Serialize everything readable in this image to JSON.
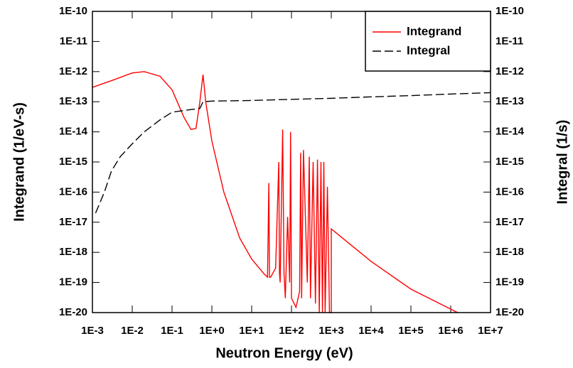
{
  "chart_data": {
    "type": "line",
    "xlabel": "Neutron Energy (eV)",
    "ylabel": "Integrand (1/eV-s)",
    "y2label": "Integral (1/s)",
    "log_x": true,
    "log_y": true,
    "legend": "upper right",
    "xlim": [
      0.001,
      10000000
    ],
    "xticks": [
      {
        "value": 0.001,
        "label": "1E-3"
      },
      {
        "value": 0.01,
        "label": "1E-2"
      },
      {
        "value": 0.1,
        "label": "1E-1"
      },
      {
        "value": 1,
        "label": "1E+0"
      },
      {
        "value": 10,
        "label": "1E+1"
      },
      {
        "value": 100,
        "label": "1E+2"
      },
      {
        "value": 1000,
        "label": "1E+3"
      },
      {
        "value": 10000,
        "label": "1E+4"
      },
      {
        "value": 100000,
        "label": "1E+5"
      },
      {
        "value": 1000000,
        "label": "1E+6"
      },
      {
        "value": 10000000,
        "label": "1E+7"
      }
    ],
    "ylim": [
      1e-20,
      1e-10
    ],
    "yticks": [
      {
        "value": 1e-20,
        "label": "1E-20"
      },
      {
        "value": 1e-19,
        "label": "1E-19"
      },
      {
        "value": 1e-18,
        "label": "1E-18"
      },
      {
        "value": 1e-17,
        "label": "1E-17"
      },
      {
        "value": 1e-16,
        "label": "1E-16"
      },
      {
        "value": 1e-15,
        "label": "1E-15"
      },
      {
        "value": 1e-14,
        "label": "1E-14"
      },
      {
        "value": 1e-13,
        "label": "1E-13"
      },
      {
        "value": 1e-12,
        "label": "1E-12"
      },
      {
        "value": 1e-11,
        "label": "1E-11"
      },
      {
        "value": 1e-10,
        "label": "1E-10"
      }
    ],
    "y2lim": [
      1e-20,
      1e-10
    ],
    "y2ticks": [
      {
        "value": 1e-20,
        "label": "1E-20"
      },
      {
        "value": 1e-19,
        "label": "1E-19"
      },
      {
        "value": 1e-18,
        "label": "1E-18"
      },
      {
        "value": 1e-17,
        "label": "1E-17"
      },
      {
        "value": 1e-16,
        "label": "1E-16"
      },
      {
        "value": 1e-15,
        "label": "1E-15"
      },
      {
        "value": 1e-14,
        "label": "1E-14"
      },
      {
        "value": 1e-13,
        "label": "1E-13"
      },
      {
        "value": 1e-12,
        "label": "1E-12"
      },
      {
        "value": 1e-11,
        "label": "1E-11"
      },
      {
        "value": 1e-10,
        "label": "1E-10"
      }
    ],
    "series": [
      {
        "name": "Integrand",
        "color": "#ff0000",
        "dash": "solid",
        "x": [
          0.001,
          0.003,
          0.01,
          0.02,
          0.05,
          0.1,
          0.2,
          0.3,
          0.4,
          0.5,
          0.6,
          0.7,
          1,
          2,
          5,
          10,
          20,
          25,
          27,
          28,
          30,
          40,
          48,
          50,
          52,
          60,
          65,
          70,
          80,
          90,
          95,
          100,
          130,
          160,
          170,
          180,
          200,
          250,
          280,
          300,
          350,
          400,
          450,
          500,
          550,
          600,
          650,
          700,
          800,
          900,
          1000,
          1000,
          10000,
          100000,
          1000000,
          1500000
        ],
        "values": [
          3e-13,
          5e-13,
          9e-13,
          1e-12,
          7e-13,
          2.5e-13,
          3e-14,
          1.2e-14,
          1.3e-14,
          1e-13,
          8e-13,
          1e-13,
          5e-15,
          1e-16,
          3e-18,
          6e-19,
          2e-19,
          1.5e-19,
          2e-16,
          1.5e-19,
          1.5e-19,
          3e-19,
          1e-15,
          2e-19,
          1e-19,
          1.2e-14,
          2e-19,
          3e-20,
          1.5e-17,
          1e-19,
          1e-14,
          3e-20,
          1.5e-20,
          5e-20,
          2e-15,
          3e-20,
          2.5e-15,
          1e-19,
          1.5e-15,
          3e-20,
          1e-15,
          2e-20,
          1.2e-15,
          1e-20,
          1e-15,
          1e-20,
          1e-15,
          1e-20,
          1.5e-16,
          1e-20,
          1e-20,
          6e-18,
          5e-19,
          6e-20,
          1.3e-20,
          1e-20
        ]
      },
      {
        "name": "Integral",
        "color": "#000000",
        "dash": "dashed",
        "axis": "y2",
        "x": [
          0.0012,
          0.002,
          0.003,
          0.005,
          0.01,
          0.02,
          0.05,
          0.1,
          0.3,
          0.5,
          0.6,
          1,
          10,
          100,
          1000,
          10000,
          100000,
          1000000,
          10000000
        ],
        "values": [
          2e-17,
          1e-16,
          5e-16,
          1.5e-15,
          4e-15,
          1e-14,
          2.5e-14,
          4.5e-14,
          5.5e-14,
          6e-14,
          1e-13,
          1.05e-13,
          1.1e-13,
          1.2e-13,
          1.3e-13,
          1.45e-13,
          1.6e-13,
          1.8e-13,
          2e-13
        ]
      }
    ]
  }
}
